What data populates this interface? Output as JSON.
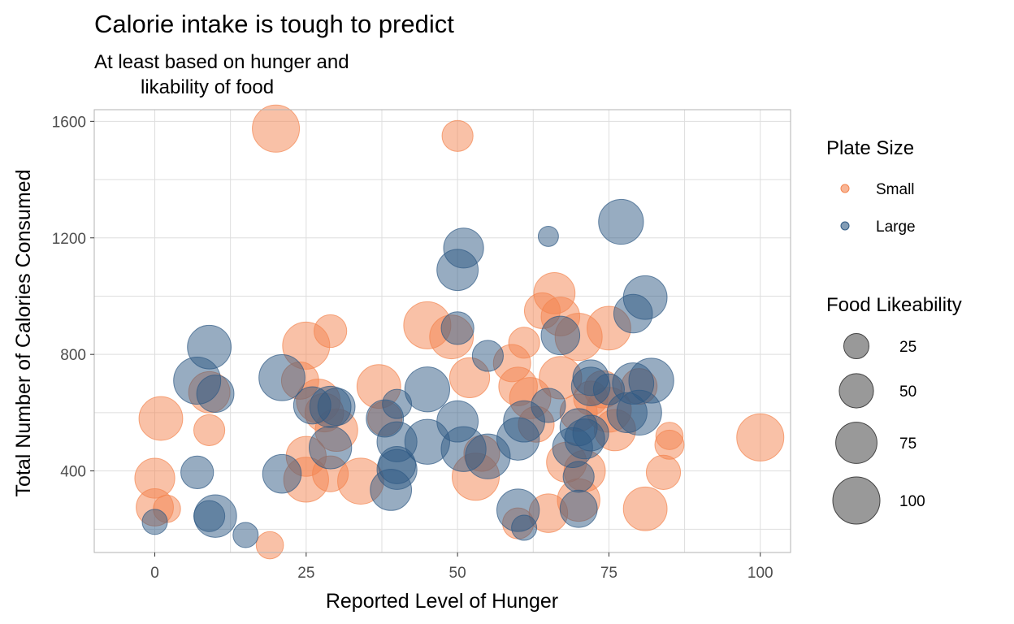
{
  "colors": {
    "small": "#F4844F",
    "large": "#2F5A84",
    "size_legend": "#555555"
  },
  "chart_data": {
    "type": "scatter",
    "title": "Calorie intake is tough to predict",
    "subtitle_lines": [
      "At least based on hunger and",
      "likability of food"
    ],
    "xlabel": "Reported Level of Hunger",
    "ylabel": "Total Number of Calories Consumed",
    "xlim": [
      -10,
      105
    ],
    "ylim": [
      120,
      1640
    ],
    "x_ticks": [
      0,
      25,
      50,
      75,
      100
    ],
    "y_ticks": [
      400,
      800,
      1200,
      1600
    ],
    "grid": true,
    "legend_position": "right",
    "color_legend": {
      "title": "Plate Size",
      "entries": [
        "Small",
        "Large"
      ]
    },
    "size_legend": {
      "title": "Food Likeability",
      "entries": [
        25,
        50,
        75,
        100
      ]
    },
    "series": [
      {
        "name": "Small",
        "points": [
          {
            "x": 20,
            "y": 1575,
            "s": 100
          },
          {
            "x": 50,
            "y": 1550,
            "s": 40
          },
          {
            "x": 1,
            "y": 580,
            "s": 85
          },
          {
            "x": 0,
            "y": 375,
            "s": 70
          },
          {
            "x": 0,
            "y": 275,
            "s": 60
          },
          {
            "x": 2,
            "y": 270,
            "s": 30
          },
          {
            "x": 9,
            "y": 670,
            "s": 75
          },
          {
            "x": 9,
            "y": 540,
            "s": 40
          },
          {
            "x": 19,
            "y": 145,
            "s": 30
          },
          {
            "x": 25,
            "y": 830,
            "s": 100
          },
          {
            "x": 24,
            "y": 710,
            "s": 60
          },
          {
            "x": 25,
            "y": 450,
            "s": 70
          },
          {
            "x": 25,
            "y": 370,
            "s": 90
          },
          {
            "x": 29,
            "y": 880,
            "s": 45
          },
          {
            "x": 27,
            "y": 640,
            "s": 85
          },
          {
            "x": 28,
            "y": 600,
            "s": 65
          },
          {
            "x": 29,
            "y": 390,
            "s": 55
          },
          {
            "x": 30,
            "y": 540,
            "s": 80
          },
          {
            "x": 34,
            "y": 365,
            "s": 95
          },
          {
            "x": 37,
            "y": 690,
            "s": 85
          },
          {
            "x": 38,
            "y": 580,
            "s": 50
          },
          {
            "x": 45,
            "y": 900,
            "s": 100
          },
          {
            "x": 49,
            "y": 860,
            "s": 85
          },
          {
            "x": 52,
            "y": 720,
            "s": 70
          },
          {
            "x": 53,
            "y": 380,
            "s": 100
          },
          {
            "x": 54,
            "y": 460,
            "s": 55
          },
          {
            "x": 59,
            "y": 770,
            "s": 60
          },
          {
            "x": 60,
            "y": 690,
            "s": 65
          },
          {
            "x": 61,
            "y": 840,
            "s": 40
          },
          {
            "x": 60,
            "y": 220,
            "s": 40
          },
          {
            "x": 62,
            "y": 650,
            "s": 75
          },
          {
            "x": 63,
            "y": 560,
            "s": 55
          },
          {
            "x": 64,
            "y": 950,
            "s": 55
          },
          {
            "x": 65,
            "y": 255,
            "s": 65
          },
          {
            "x": 66,
            "y": 1010,
            "s": 75
          },
          {
            "x": 67,
            "y": 720,
            "s": 80
          },
          {
            "x": 67,
            "y": 930,
            "s": 65
          },
          {
            "x": 68,
            "y": 430,
            "s": 70
          },
          {
            "x": 70,
            "y": 860,
            "s": 100
          },
          {
            "x": 70,
            "y": 600,
            "s": 60
          },
          {
            "x": 70,
            "y": 300,
            "s": 80
          },
          {
            "x": 71,
            "y": 400,
            "s": 75
          },
          {
            "x": 72,
            "y": 650,
            "s": 50
          },
          {
            "x": 74,
            "y": 680,
            "s": 60
          },
          {
            "x": 75,
            "y": 890,
            "s": 85
          },
          {
            "x": 75,
            "y": 610,
            "s": 90
          },
          {
            "x": 76,
            "y": 540,
            "s": 75
          },
          {
            "x": 80,
            "y": 690,
            "s": 55
          },
          {
            "x": 81,
            "y": 270,
            "s": 85
          },
          {
            "x": 84,
            "y": 395,
            "s": 50
          },
          {
            "x": 85,
            "y": 520,
            "s": 30
          },
          {
            "x": 85,
            "y": 490,
            "s": 35
          },
          {
            "x": 100,
            "y": 515,
            "s": 100
          }
        ]
      },
      {
        "name": "Large",
        "points": [
          {
            "x": 0,
            "y": 225,
            "s": 25
          },
          {
            "x": 7,
            "y": 395,
            "s": 45
          },
          {
            "x": 7,
            "y": 710,
            "s": 100
          },
          {
            "x": 9,
            "y": 825,
            "s": 85
          },
          {
            "x": 9,
            "y": 245,
            "s": 40
          },
          {
            "x": 10,
            "y": 665,
            "s": 60
          },
          {
            "x": 10,
            "y": 245,
            "s": 80
          },
          {
            "x": 15,
            "y": 180,
            "s": 25
          },
          {
            "x": 21,
            "y": 720,
            "s": 95
          },
          {
            "x": 21,
            "y": 390,
            "s": 65
          },
          {
            "x": 26,
            "y": 625,
            "s": 60
          },
          {
            "x": 29,
            "y": 480,
            "s": 80
          },
          {
            "x": 29,
            "y": 620,
            "s": 75
          },
          {
            "x": 30,
            "y": 620,
            "s": 60
          },
          {
            "x": 38,
            "y": 580,
            "s": 60
          },
          {
            "x": 39,
            "y": 335,
            "s": 75
          },
          {
            "x": 40,
            "y": 630,
            "s": 35
          },
          {
            "x": 40,
            "y": 500,
            "s": 70
          },
          {
            "x": 40,
            "y": 420,
            "s": 60
          },
          {
            "x": 40,
            "y": 405,
            "s": 70
          },
          {
            "x": 45,
            "y": 680,
            "s": 90
          },
          {
            "x": 45,
            "y": 500,
            "s": 90
          },
          {
            "x": 50,
            "y": 890,
            "s": 45
          },
          {
            "x": 50,
            "y": 570,
            "s": 75
          },
          {
            "x": 50,
            "y": 1090,
            "s": 75
          },
          {
            "x": 51,
            "y": 1165,
            "s": 70
          },
          {
            "x": 51,
            "y": 475,
            "s": 90
          },
          {
            "x": 55,
            "y": 795,
            "s": 40
          },
          {
            "x": 55,
            "y": 450,
            "s": 90
          },
          {
            "x": 60,
            "y": 510,
            "s": 80
          },
          {
            "x": 60,
            "y": 265,
            "s": 80
          },
          {
            "x": 61,
            "y": 570,
            "s": 75
          },
          {
            "x": 61,
            "y": 205,
            "s": 25
          },
          {
            "x": 65,
            "y": 1205,
            "s": 15
          },
          {
            "x": 65,
            "y": 625,
            "s": 50
          },
          {
            "x": 67,
            "y": 865,
            "s": 65
          },
          {
            "x": 69,
            "y": 480,
            "s": 70
          },
          {
            "x": 70,
            "y": 550,
            "s": 60
          },
          {
            "x": 70,
            "y": 380,
            "s": 40
          },
          {
            "x": 70,
            "y": 270,
            "s": 60
          },
          {
            "x": 71,
            "y": 510,
            "s": 70
          },
          {
            "x": 72,
            "y": 720,
            "s": 55
          },
          {
            "x": 72,
            "y": 690,
            "s": 65
          },
          {
            "x": 72,
            "y": 530,
            "s": 55
          },
          {
            "x": 75,
            "y": 680,
            "s": 40
          },
          {
            "x": 77,
            "y": 1255,
            "s": 90
          },
          {
            "x": 78,
            "y": 600,
            "s": 70
          },
          {
            "x": 79,
            "y": 940,
            "s": 65
          },
          {
            "x": 79,
            "y": 700,
            "s": 75
          },
          {
            "x": 80,
            "y": 600,
            "s": 90
          },
          {
            "x": 81,
            "y": 995,
            "s": 85
          },
          {
            "x": 82,
            "y": 710,
            "s": 90
          }
        ]
      }
    ]
  }
}
